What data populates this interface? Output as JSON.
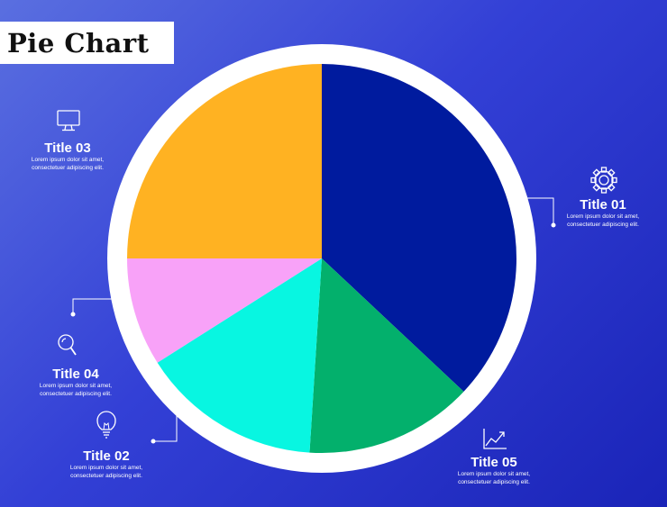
{
  "title": "Pie Chart",
  "colors": {
    "background_start": "#5a6fe0",
    "background_end": "#1a24b8",
    "ring": "#ffffff"
  },
  "callouts": [
    {
      "id": "c01",
      "title": "Title 01",
      "line1": "Lorem ipsum dolor sit amet,",
      "line2": "consectetuer adipiscing elit.",
      "icon": "gear-icon"
    },
    {
      "id": "c02",
      "title": "Title 02",
      "line1": "Lorem ipsum dolor sit amet,",
      "line2": "consectetuer adipiscing elit.",
      "icon": "lightbulb-icon"
    },
    {
      "id": "c03",
      "title": "Title 03",
      "line1": "Lorem ipsum dolor sit amet,",
      "line2": "consectetuer adipiscing elit.",
      "icon": "monitor-icon"
    },
    {
      "id": "c04",
      "title": "Title 04",
      "line1": "Lorem ipsum dolor sit amet,",
      "line2": "consectetuer adipiscing elit.",
      "icon": "magnifier-icon"
    },
    {
      "id": "c05",
      "title": "Title 05",
      "line1": "Lorem ipsum dolor sit amet,",
      "line2": "consectetuer adipiscing elit.",
      "icon": "trend-chart-icon"
    }
  ],
  "chart_data": {
    "type": "pie",
    "title": "Pie Chart",
    "start_angle_deg": 0,
    "direction": "clockwise",
    "slices": [
      {
        "value": 37,
        "color": "#001b9e"
      },
      {
        "value": 14,
        "color": "#03b06c"
      },
      {
        "value": 15,
        "color": "#08f6e1"
      },
      {
        "value": 9,
        "color": "#f8a2f8"
      },
      {
        "value": 25,
        "color": "#ffb222"
      }
    ]
  }
}
